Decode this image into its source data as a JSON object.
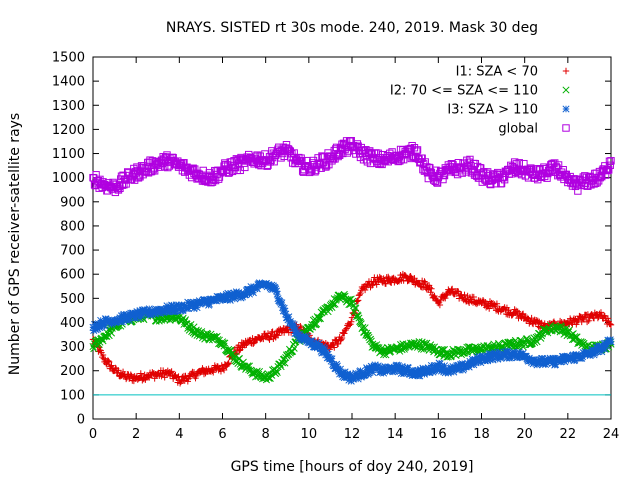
{
  "chart_data": {
    "type": "scatter",
    "title": "NRAYS. SISTED rt 30s mode. 240, 2019. Mask 30 deg",
    "xlabel": "GPS time [hours of doy 240, 2019]",
    "ylabel": "Number of GPS receiver-satellite rays",
    "xlim": [
      0,
      24
    ],
    "ylim": [
      0,
      1500
    ],
    "xticks": [
      0,
      2,
      4,
      6,
      8,
      10,
      12,
      14,
      16,
      18,
      20,
      22,
      24
    ],
    "yticks": [
      0,
      100,
      200,
      300,
      400,
      500,
      600,
      700,
      800,
      900,
      1000,
      1100,
      1200,
      1300,
      1400,
      1500
    ],
    "reference_line": {
      "y": 100,
      "color": "#00c0c0"
    },
    "legend_position": "top-right",
    "series": [
      {
        "name": "I1: SZA < 70",
        "marker": "+",
        "color": "#e00000",
        "x": [
          0,
          0.5,
          1,
          1.5,
          2,
          2.5,
          3,
          3.5,
          4,
          4.5,
          5,
          5.5,
          6,
          6.5,
          7,
          7.5,
          8,
          8.5,
          9,
          9.5,
          10,
          10.5,
          11,
          11.5,
          12,
          12.5,
          13,
          13.5,
          14,
          14.5,
          15,
          15.5,
          16,
          16.5,
          17,
          17.5,
          18,
          18.5,
          19,
          19.5,
          20,
          20.5,
          21,
          21.5,
          22,
          22.5,
          23,
          23.5,
          24
        ],
        "values": [
          330,
          250,
          200,
          175,
          170,
          180,
          185,
          190,
          160,
          175,
          195,
          205,
          210,
          270,
          310,
          330,
          340,
          350,
          370,
          380,
          340,
          310,
          300,
          330,
          420,
          540,
          570,
          575,
          580,
          590,
          570,
          550,
          480,
          530,
          510,
          495,
          480,
          470,
          455,
          440,
          420,
          400,
          380,
          390,
          400,
          410,
          420,
          430,
          390
        ]
      },
      {
        "name": "I2: 70 <= SZA <= 110",
        "marker": "x",
        "color": "#00b000",
        "x": [
          0,
          0.5,
          1,
          1.5,
          2,
          2.5,
          3,
          3.5,
          4,
          4.5,
          5,
          5.5,
          6,
          6.5,
          7,
          7.5,
          8,
          8.5,
          9,
          9.5,
          10,
          10.5,
          11,
          11.5,
          12,
          12.5,
          13,
          13.5,
          14,
          14.5,
          15,
          15.5,
          16,
          16.5,
          17,
          17.5,
          18,
          18.5,
          19,
          19.5,
          20,
          20.5,
          21,
          21.5,
          22,
          22.5,
          23,
          23.5,
          24
        ],
        "values": [
          300,
          340,
          380,
          410,
          420,
          430,
          420,
          425,
          420,
          380,
          350,
          340,
          320,
          260,
          220,
          190,
          170,
          200,
          260,
          330,
          380,
          420,
          470,
          510,
          480,
          380,
          300,
          280,
          290,
          300,
          310,
          300,
          280,
          270,
          280,
          285,
          290,
          295,
          300,
          310,
          315,
          330,
          370,
          380,
          360,
          320,
          290,
          300,
          310
        ]
      },
      {
        "name": "I3: SZA > 110",
        "marker": "*",
        "color": "#1060d0",
        "x": [
          0,
          0.5,
          1,
          1.5,
          2,
          2.5,
          3,
          3.5,
          4,
          4.5,
          5,
          5.5,
          6,
          6.5,
          7,
          7.5,
          8,
          8.5,
          9,
          9.5,
          10,
          10.5,
          11,
          11.5,
          12,
          12.5,
          13,
          13.5,
          14,
          14.5,
          15,
          15.5,
          16,
          16.5,
          17,
          17.5,
          18,
          18.5,
          19,
          19.5,
          20,
          20.5,
          21,
          21.5,
          22,
          22.5,
          23,
          23.5,
          24
        ],
        "values": [
          380,
          400,
          410,
          420,
          430,
          440,
          450,
          455,
          460,
          470,
          480,
          490,
          500,
          510,
          520,
          540,
          560,
          530,
          420,
          350,
          320,
          300,
          250,
          190,
          170,
          190,
          210,
          200,
          210,
          200,
          190,
          200,
          220,
          200,
          210,
          230,
          250,
          260,
          265,
          270,
          260,
          240,
          235,
          240,
          250,
          260,
          270,
          290,
          320
        ]
      },
      {
        "name": "global",
        "marker": "square",
        "color": "#b000e0",
        "x": [
          0,
          0.5,
          1,
          1.5,
          2,
          2.5,
          3,
          3.5,
          4,
          4.5,
          5,
          5.5,
          6,
          6.5,
          7,
          7.5,
          8,
          8.5,
          9,
          9.5,
          10,
          10.5,
          11,
          11.5,
          12,
          12.5,
          13,
          13.5,
          14,
          14.5,
          15,
          15.5,
          16,
          16.5,
          17,
          17.5,
          18,
          18.5,
          19,
          19.5,
          20,
          20.5,
          21,
          21.5,
          22,
          22.5,
          23,
          23.5,
          24
        ],
        "values": [
          1000,
          970,
          960,
          990,
          1020,
          1040,
          1060,
          1070,
          1050,
          1030,
          1010,
          1000,
          1030,
          1050,
          1060,
          1080,
          1070,
          1100,
          1110,
          1060,
          1040,
          1060,
          1080,
          1120,
          1130,
          1100,
          1080,
          1070,
          1090,
          1100,
          1110,
          1020,
          1000,
          1030,
          1040,
          1050,
          1010,
          990,
          1000,
          1040,
          1030,
          1010,
          1020,
          1040,
          980,
          970,
          990,
          1000,
          1070
        ]
      }
    ]
  }
}
